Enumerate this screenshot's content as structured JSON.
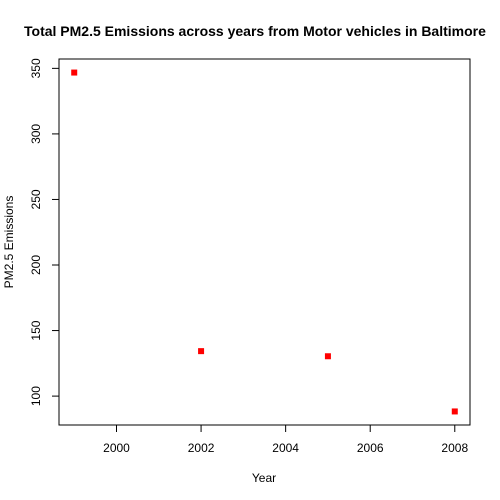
{
  "chart_data": {
    "type": "scatter",
    "title": "Total PM2.5 Emissions across years from Motor vehicles in Baltimore",
    "xlabel": "Year",
    "ylabel": "PM2.5 Emissions",
    "x": [
      1999,
      2002,
      2005,
      2008
    ],
    "y": [
      346.8,
      134.3,
      130.4,
      88.3
    ],
    "xlim": [
      1999,
      2008
    ],
    "ylim": [
      88.3,
      346.8
    ],
    "xticks": [
      2000,
      2002,
      2004,
      2006,
      2008
    ],
    "yticks": [
      100,
      150,
      200,
      250,
      300,
      350
    ],
    "point_color": "#ff0000",
    "grid": false
  }
}
